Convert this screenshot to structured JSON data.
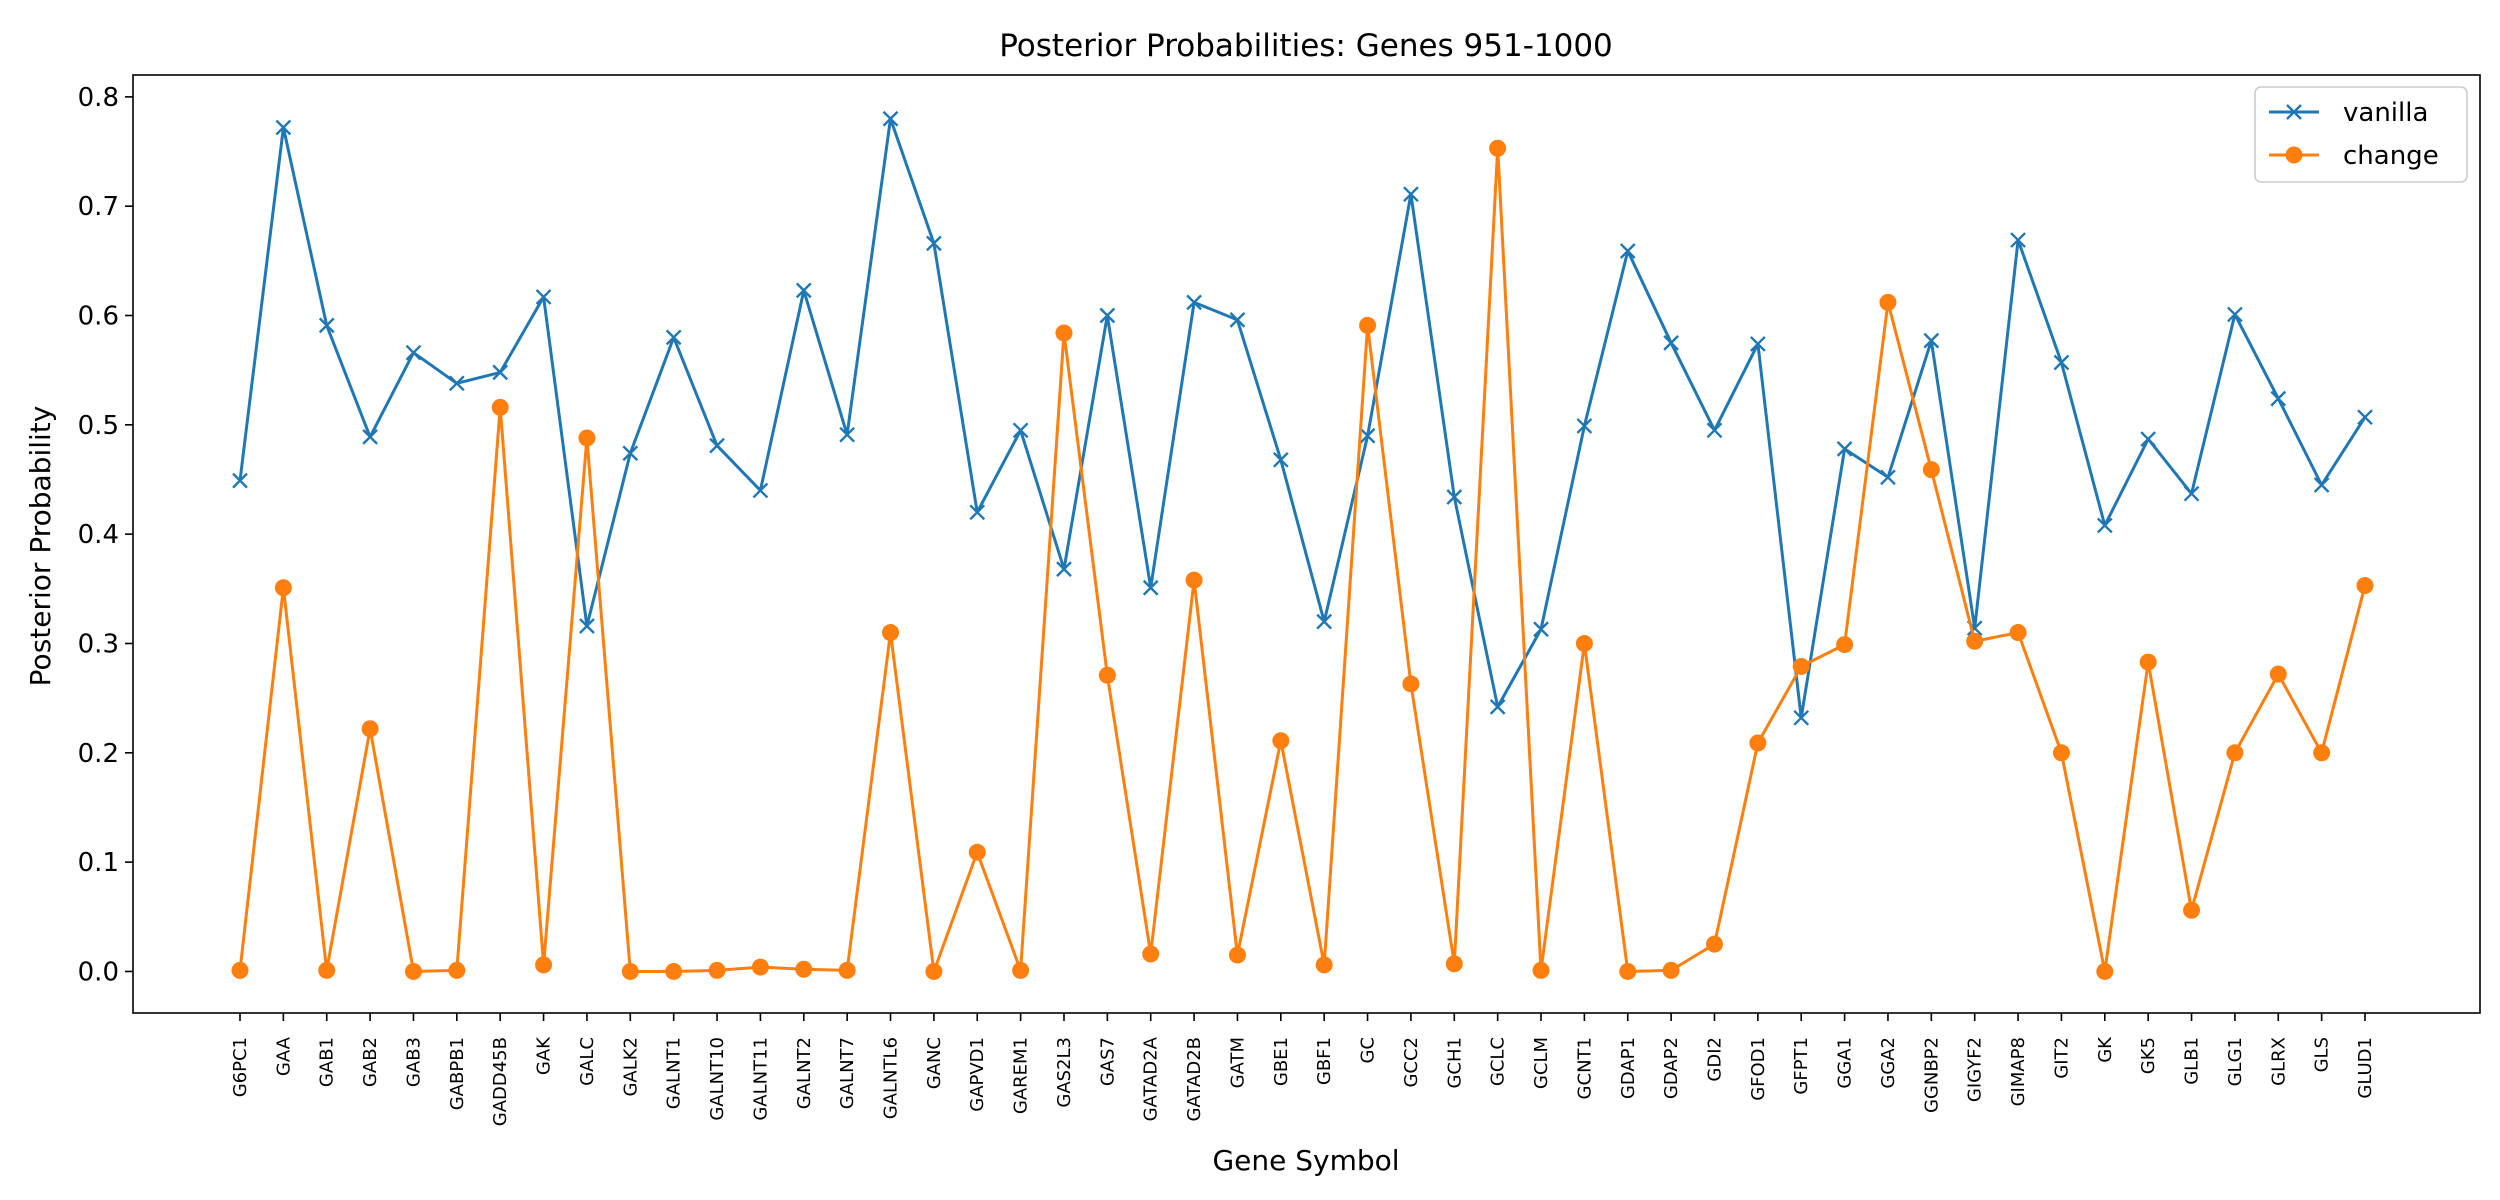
{
  "chart_data": {
    "type": "line",
    "title": "Posterior Probabilities: Genes 951-1000",
    "xlabel": "Gene Symbol",
    "ylabel": "Posterior Probability",
    "ylim": [
      -0.038,
      0.82
    ],
    "yticks": [
      "0.0",
      "0.1",
      "0.2",
      "0.3",
      "0.4",
      "0.5",
      "0.6",
      "0.7",
      "0.8"
    ],
    "legend_position": "top-right",
    "grid": false,
    "categories": [
      "G6PC1",
      "GAA",
      "GAB1",
      "GAB2",
      "GAB3",
      "GABPB1",
      "GADD45B",
      "GAK",
      "GALC",
      "GALK2",
      "GALNT1",
      "GALNT10",
      "GALNT11",
      "GALNT2",
      "GALNT7",
      "GALNTL6",
      "GANC",
      "GAPVD1",
      "GAREM1",
      "GAS2L3",
      "GAS7",
      "GATAD2A",
      "GATAD2B",
      "GATM",
      "GBE1",
      "GBF1",
      "GC",
      "GCC2",
      "GCH1",
      "GCLC",
      "GCLM",
      "GCNT1",
      "GDAP1",
      "GDAP2",
      "GDI2",
      "GFOD1",
      "GFPT1",
      "GGA1",
      "GGA2",
      "GGNBP2",
      "GIGYF2",
      "GIMAP8",
      "GIT2",
      "GK",
      "GK5",
      "GLB1",
      "GLG1",
      "GLRX",
      "GLS",
      "GLUD1"
    ],
    "series": [
      {
        "name": "vanilla",
        "color": "#1f77b4",
        "marker": "x",
        "values": [
          0.449,
          0.772,
          0.591,
          0.489,
          0.566,
          0.538,
          0.548,
          0.617,
          0.316,
          0.474,
          0.58,
          0.481,
          0.44,
          0.623,
          0.491,
          0.78,
          0.666,
          0.42,
          0.495,
          0.368,
          0.6,
          0.351,
          0.612,
          0.596,
          0.468,
          0.32,
          0.49,
          0.711,
          0.434,
          0.242,
          0.313,
          0.499,
          0.659,
          0.575,
          0.495,
          0.574,
          0.232,
          0.478,
          0.452,
          0.577,
          0.314,
          0.669,
          0.557,
          0.408,
          0.487,
          0.437,
          0.601,
          0.524,
          0.445,
          0.507
        ]
      },
      {
        "name": "change",
        "color": "#ff7f0e",
        "marker": "o",
        "values": [
          0.001,
          0.351,
          0.001,
          0.222,
          0.0,
          0.001,
          0.516,
          0.006,
          0.488,
          0.0,
          0.0,
          0.001,
          0.004,
          0.002,
          0.001,
          0.31,
          0.0,
          0.109,
          0.001,
          0.584,
          0.271,
          0.016,
          0.358,
          0.015,
          0.211,
          0.006,
          0.591,
          0.263,
          0.007,
          0.753,
          0.001,
          0.3,
          0.0,
          0.001,
          0.025,
          0.209,
          0.279,
          0.299,
          0.612,
          0.459,
          0.302,
          0.31,
          0.2,
          0.0,
          0.283,
          0.056,
          0.2,
          0.272,
          0.2,
          0.353
        ]
      }
    ]
  }
}
